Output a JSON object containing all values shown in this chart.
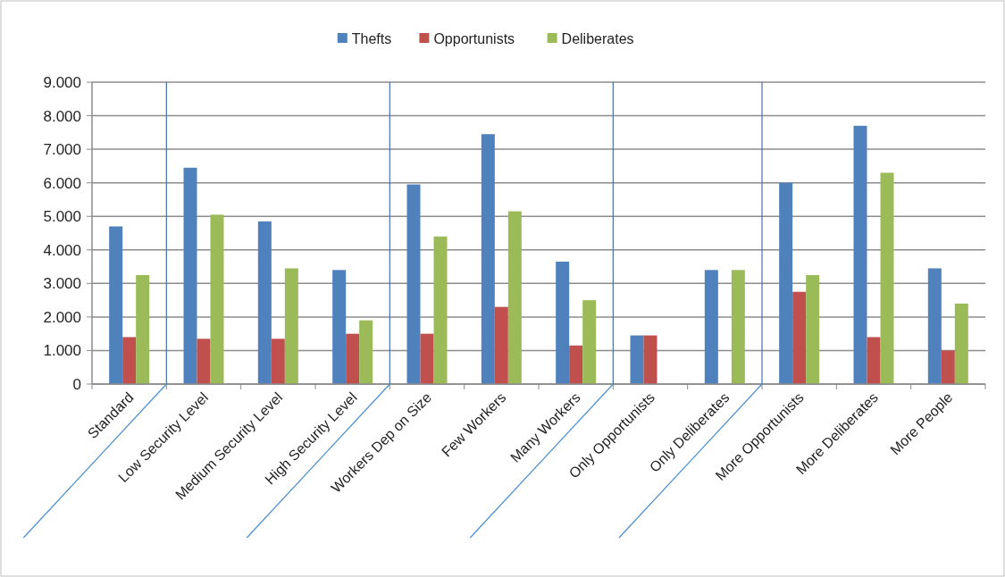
{
  "chart_data": {
    "type": "bar",
    "categories": [
      "Standard",
      "Low Security Level",
      "Medium Security Level",
      "High Security Level",
      "Workers Dep on Size",
      "Few Workers",
      "Many Workers",
      "Only Opportunists",
      "Only Deliberates",
      "More Opportunists",
      "More Deliberates",
      "More People"
    ],
    "series": [
      {
        "name": "Thefts",
        "color": "#4f81bd",
        "values": [
          4700,
          6450,
          4850,
          3400,
          5950,
          7450,
          3650,
          1450,
          3400,
          6000,
          7700,
          3450
        ]
      },
      {
        "name": "Opportunists",
        "color": "#c0504d",
        "values": [
          1400,
          1350,
          1350,
          1500,
          1500,
          2300,
          1150,
          1450,
          0,
          2750,
          1400,
          1000
        ]
      },
      {
        "name": "Deliberates",
        "color": "#9bbb59",
        "values": [
          3250,
          5050,
          3450,
          1900,
          4400,
          5150,
          2500,
          0,
          3400,
          3250,
          6300,
          2400
        ]
      }
    ],
    "ylim": [
      0,
      9000
    ],
    "yticks": [
      {
        "value": 0,
        "label": "0"
      },
      {
        "value": 1000,
        "label": "1.000"
      },
      {
        "value": 2000,
        "label": "2.000"
      },
      {
        "value": 3000,
        "label": "3.000"
      },
      {
        "value": 4000,
        "label": "4.000"
      },
      {
        "value": 5000,
        "label": "5.000"
      },
      {
        "value": 6000,
        "label": "6.000"
      },
      {
        "value": 7000,
        "label": "7.000"
      },
      {
        "value": 8000,
        "label": "8.000"
      },
      {
        "value": 9000,
        "label": "9.000"
      }
    ],
    "grid": "y",
    "legend": "top"
  }
}
